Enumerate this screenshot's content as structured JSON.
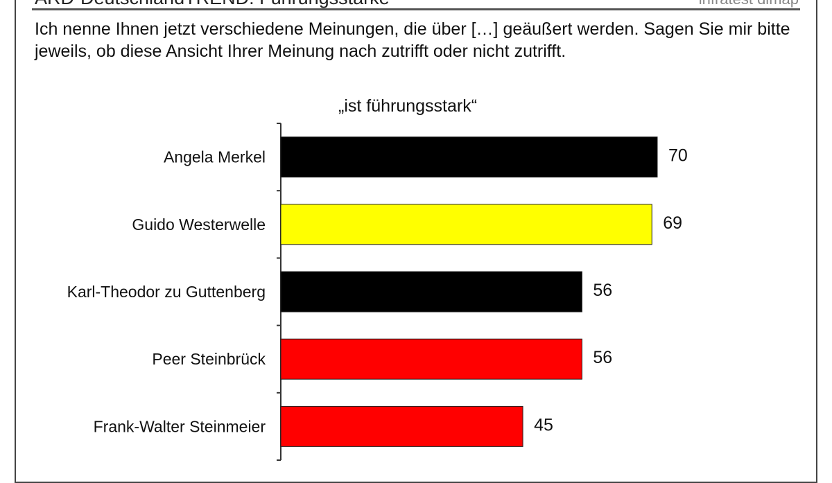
{
  "header": {
    "title": "ARD-DeutschlandTREND: Führungsstärke",
    "brand": "infratest dimap"
  },
  "question": "Ich nenne Ihnen jetzt verschiedene Meinungen, die über […] geäußert werden. Sagen Sie mir bitte jeweils, ob diese Ansicht Ihrer Meinung nach zutrifft oder nicht zutrifft.",
  "chart_data": {
    "type": "bar",
    "orientation": "horizontal",
    "title": "„ist führungsstark“",
    "categories": [
      "Angela Merkel",
      "Guido Westerwelle",
      "Karl-Theodor zu Guttenberg",
      "Peer Steinbrück",
      "Frank-Walter Steinmeier"
    ],
    "values": [
      70,
      69,
      56,
      56,
      45
    ],
    "colors": [
      "#000000",
      "#ffff00",
      "#000000",
      "#ff0000",
      "#ff0000"
    ],
    "xlim": [
      0,
      70
    ],
    "grid": false
  }
}
